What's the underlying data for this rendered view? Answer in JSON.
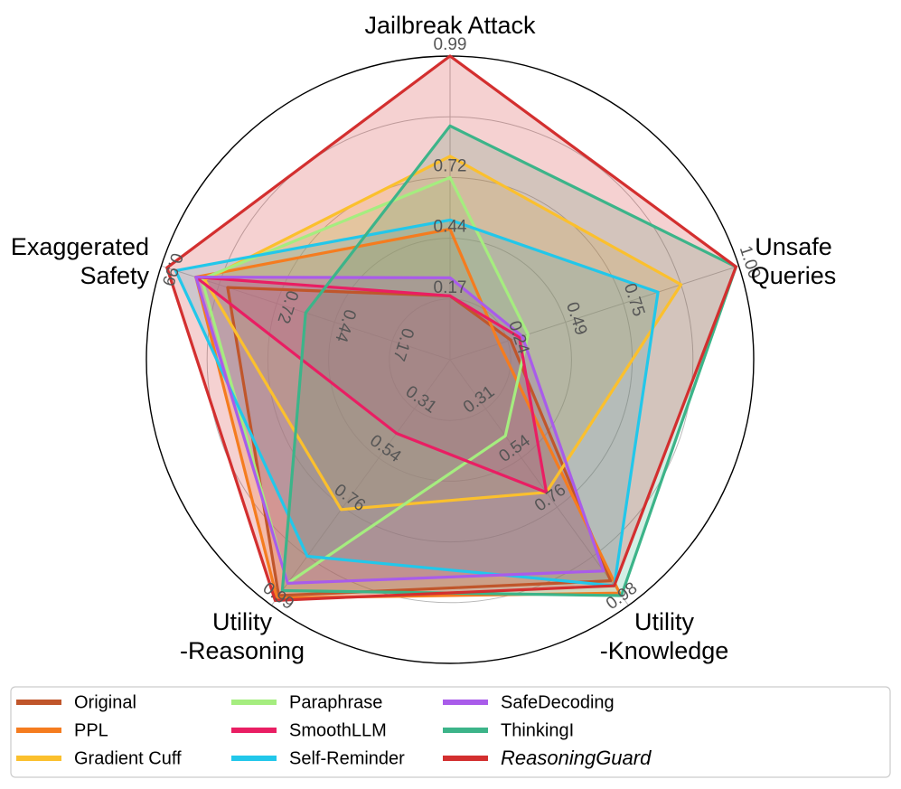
{
  "chart_data": {
    "type": "radar",
    "axes": [
      {
        "label_lines": [
          "Jailbreak Attack"
        ],
        "ticks": [
          "0.17",
          "0.44",
          "0.72",
          "0.99"
        ]
      },
      {
        "label_lines": [
          "Unsafe",
          "Queries"
        ],
        "ticks": [
          "0.24",
          "0.49",
          "0.75",
          "1.00"
        ]
      },
      {
        "label_lines": [
          "Utility",
          "-Knowledge"
        ],
        "ticks": [
          "0.31",
          "0.54",
          "0.76",
          "0.98"
        ]
      },
      {
        "label_lines": [
          "Utility",
          "-Reasoning"
        ],
        "ticks": [
          "0.31",
          "0.54",
          "0.76",
          "0.99"
        ]
      },
      {
        "label_lines": [
          "Exaggerated",
          "Safety"
        ],
        "ticks": [
          "0.17",
          "0.44",
          "0.72",
          "0.99"
        ]
      }
    ],
    "grid": true,
    "legend_position": "bottom",
    "series": [
      {
        "name": "Original",
        "color": "#c0562b",
        "values": [
          0.21,
          0.21,
          0.9,
          0.96,
          0.77
        ]
      },
      {
        "name": "PPL",
        "color": "#f57c1f",
        "values": [
          0.43,
          0.17,
          0.95,
          0.97,
          0.88
        ]
      },
      {
        "name": "Gradient Cuff",
        "color": "#fbc02d",
        "values": [
          0.67,
          0.8,
          0.54,
          0.61,
          0.85
        ]
      },
      {
        "name": "Paraphrase",
        "color": "#a5ed7f",
        "values": [
          0.6,
          0.27,
          0.31,
          0.91,
          0.86
        ]
      },
      {
        "name": "SmoothLLM",
        "color": "#e91e63",
        "values": [
          0.21,
          0.24,
          0.54,
          0.3,
          0.88
        ]
      },
      {
        "name": "Self-Reminder",
        "color": "#22c7ea",
        "values": [
          0.46,
          0.72,
          0.92,
          0.8,
          0.95
        ]
      },
      {
        "name": "SafeDecoding",
        "color": "#a95cea",
        "values": [
          0.27,
          0.25,
          0.86,
          0.91,
          0.88
        ]
      },
      {
        "name": "ThinkingI",
        "color": "#3cb489",
        "values": [
          0.77,
          0.99,
          0.96,
          0.94,
          0.5
        ]
      },
      {
        "name": "ReasoningGuard",
        "color": "#d32f2f",
        "italic": true,
        "values": [
          1.0,
          0.99,
          0.92,
          0.98,
          0.98
        ]
      }
    ]
  }
}
